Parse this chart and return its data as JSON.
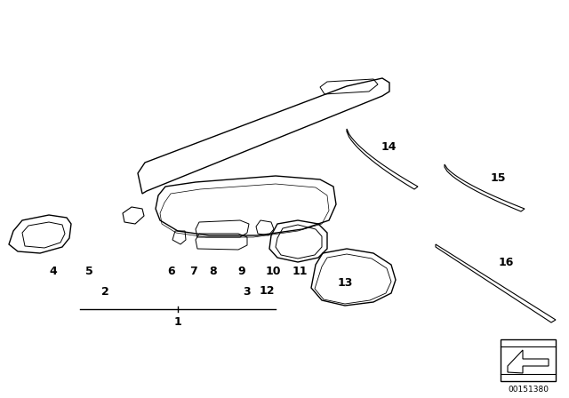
{
  "bg_color": "#ffffff",
  "line_color": "#000000",
  "fig_width": 6.4,
  "fig_height": 4.48,
  "dpi": 100,
  "part_number": "00151380",
  "label_fontsize": 9
}
